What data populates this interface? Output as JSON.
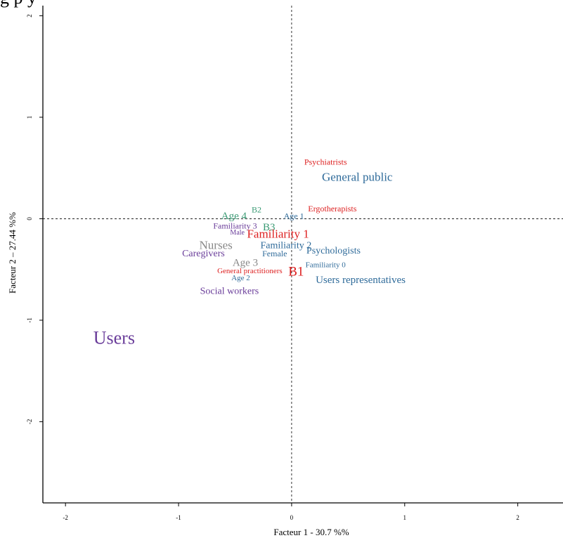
{
  "chart_data": {
    "type": "scatter",
    "title_fragment": "g            p                                    y",
    "xlabel": "Facteur 1  -  30.7 %%",
    "ylabel": "Facteur 2  –  27.44 %%",
    "xlim": [
      -2.2,
      2.4
    ],
    "ylim": [
      -2.8,
      2.1
    ],
    "x_ticks": [
      "-2",
      "-1",
      "0",
      "1",
      "2"
    ],
    "x_tick_values": [
      -2,
      -1,
      0,
      1,
      2
    ],
    "y_ticks": [
      "-2",
      "-1",
      "0",
      "1",
      "2"
    ],
    "y_tick_values": [
      -2,
      -1,
      0,
      1,
      2
    ],
    "reference_lines": {
      "x": 0,
      "y": 0,
      "style": "dashed"
    },
    "colors": {
      "red": "#dd1f1f",
      "blue": "#2f6b9a",
      "purple": "#6a3d9a",
      "green": "#3a9a74",
      "gray": "#888888"
    },
    "points": [
      {
        "label": "Psychiatrists",
        "x": 0.3,
        "y": 0.55,
        "color": "red",
        "size": 12
      },
      {
        "label": "General public",
        "x": 0.58,
        "y": 0.4,
        "color": "blue",
        "size": 17
      },
      {
        "label": "Ergotherapists",
        "x": 0.36,
        "y": 0.09,
        "color": "red",
        "size": 12
      },
      {
        "label": "B2",
        "x": -0.31,
        "y": 0.08,
        "color": "green",
        "size": 12
      },
      {
        "label": "Age 4",
        "x": -0.51,
        "y": 0.02,
        "color": "green",
        "size": 15
      },
      {
        "label": "Age 1",
        "x": 0.02,
        "y": 0.02,
        "color": "blue",
        "size": 12
      },
      {
        "label": "Familiarity 3",
        "x": -0.5,
        "y": -0.08,
        "color": "purple",
        "size": 12
      },
      {
        "label": "B3",
        "x": -0.2,
        "y": -0.09,
        "color": "green",
        "size": 15
      },
      {
        "label": "Male",
        "x": -0.48,
        "y": -0.14,
        "color": "purple",
        "size": 10
      },
      {
        "label": "Familiarity 1",
        "x": -0.12,
        "y": -0.16,
        "color": "red",
        "size": 17
      },
      {
        "label": "Nurses",
        "x": -0.67,
        "y": -0.27,
        "color": "gray",
        "size": 17
      },
      {
        "label": "Familiarity 2",
        "x": -0.05,
        "y": -0.27,
        "color": "blue",
        "size": 14
      },
      {
        "label": "Psychologists",
        "x": 0.37,
        "y": -0.32,
        "color": "blue",
        "size": 14
      },
      {
        "label": "Caregivers",
        "x": -0.78,
        "y": -0.35,
        "color": "purple",
        "size": 14
      },
      {
        "label": "Female",
        "x": -0.15,
        "y": -0.35,
        "color": "blue",
        "size": 12
      },
      {
        "label": "Age 3",
        "x": -0.41,
        "y": -0.44,
        "color": "gray",
        "size": 15
      },
      {
        "label": "Familiarity 0",
        "x": 0.3,
        "y": -0.46,
        "color": "blue",
        "size": 11
      },
      {
        "label": "B1",
        "x": 0.04,
        "y": -0.53,
        "color": "red",
        "size": 19
      },
      {
        "label": "General practitioners",
        "x": -0.37,
        "y": -0.52,
        "color": "red",
        "size": 11
      },
      {
        "label": "Age 2",
        "x": -0.45,
        "y": -0.59,
        "color": "blue",
        "size": 11
      },
      {
        "label": "Users representatives",
        "x": 0.61,
        "y": -0.61,
        "color": "blue",
        "size": 15
      },
      {
        "label": "Social workers",
        "x": -0.55,
        "y": -0.72,
        "color": "purple",
        "size": 14
      },
      {
        "label": "Users",
        "x": -1.57,
        "y": -1.19,
        "color": "purple",
        "size": 26
      }
    ]
  }
}
